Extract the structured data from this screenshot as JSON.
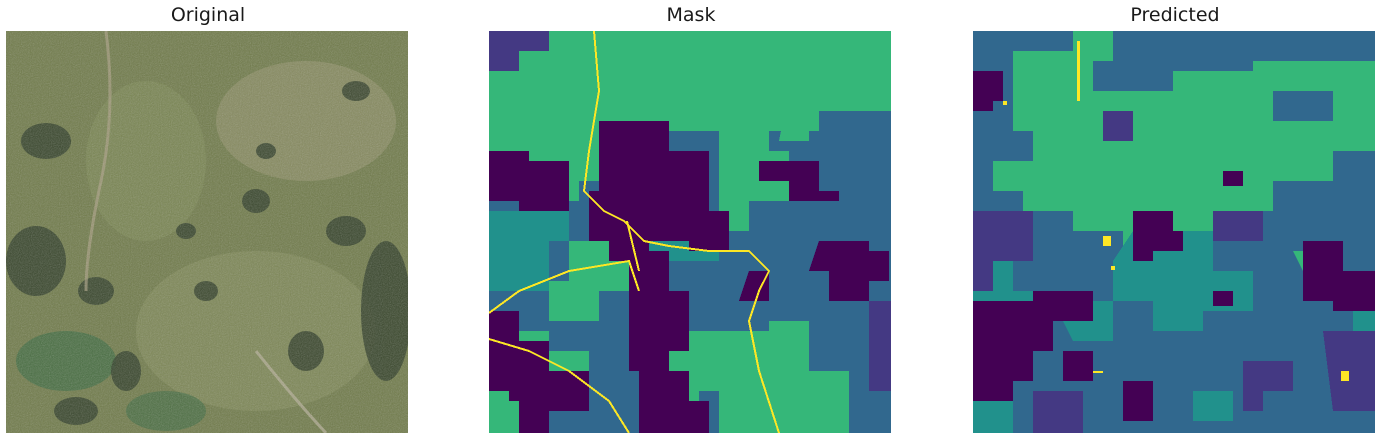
{
  "panels": [
    {
      "title": "Original"
    },
    {
      "title": "Mask"
    },
    {
      "title": "Predicted"
    }
  ],
  "colors": {
    "viridis_purple": "#440154",
    "viridis_indigo": "#443983",
    "viridis_blue": "#31688e",
    "viridis_teal": "#21918c",
    "viridis_green": "#35b779",
    "viridis_yellow": "#fde725"
  }
}
